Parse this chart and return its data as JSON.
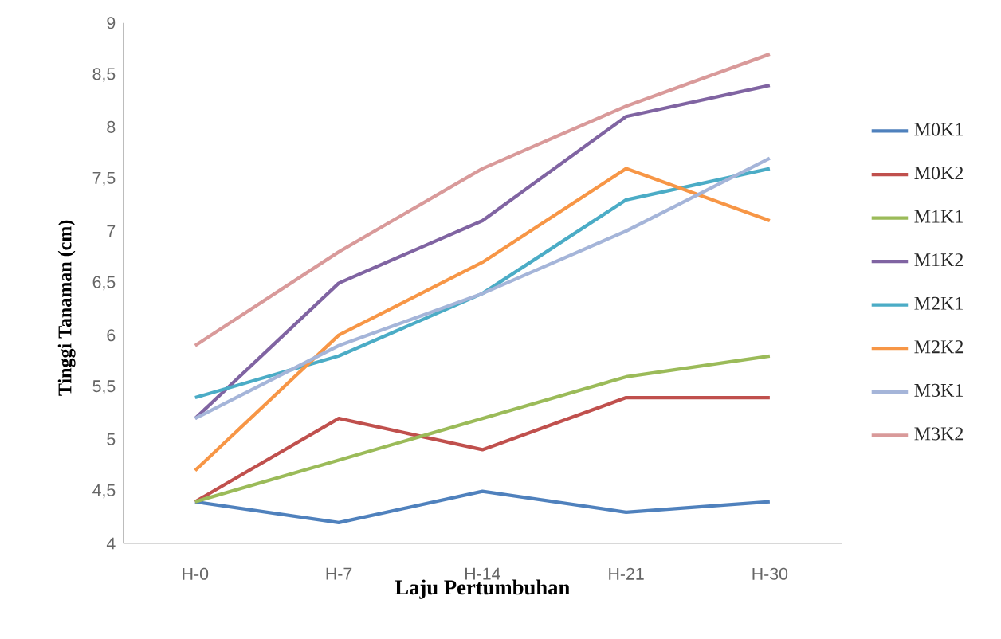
{
  "chart_data": {
    "type": "line",
    "xlabel": "Laju Pertumbuhan",
    "ylabel": "Tinggi Tanaman (cm)",
    "categories": [
      "H-0",
      "H-7",
      "H-14",
      "H-21",
      "H-30"
    ],
    "ylim": [
      4,
      9
    ],
    "yticks": [
      4,
      {
        "value": 4.5,
        "label": "4,5"
      },
      5,
      {
        "value": 5.5,
        "label": "5,5"
      },
      6,
      {
        "value": 6.5,
        "label": "6,5"
      },
      7,
      {
        "value": 7.5,
        "label": "7,5"
      },
      8,
      {
        "value": 8.5,
        "label": "8,5"
      },
      9
    ],
    "grid": false,
    "legend": "right",
    "marker": "none",
    "line_style": "solid",
    "series": [
      {
        "name": "M0K1",
        "color": "#4f81bd",
        "values": [
          4.4,
          4.2,
          4.5,
          4.3,
          4.4
        ]
      },
      {
        "name": "M0K2",
        "color": "#c0504d",
        "values": [
          4.4,
          5.2,
          4.9,
          5.4,
          5.4
        ]
      },
      {
        "name": "M1K1",
        "color": "#9bbb59",
        "values": [
          4.4,
          4.8,
          5.2,
          5.6,
          5.8
        ]
      },
      {
        "name": "M1K2",
        "color": "#8064a2",
        "values": [
          5.2,
          6.5,
          7.1,
          8.1,
          8.4
        ]
      },
      {
        "name": "M2K1",
        "color": "#4bacc6",
        "values": [
          5.4,
          5.8,
          6.4,
          7.3,
          7.6
        ]
      },
      {
        "name": "M2K2",
        "color": "#f79646",
        "values": [
          4.7,
          6.0,
          6.7,
          7.6,
          7.1
        ]
      },
      {
        "name": "M3K1",
        "color": "#a5b5d9",
        "values": [
          5.2,
          5.9,
          6.4,
          7.0,
          7.7
        ]
      },
      {
        "name": "M3K2",
        "color": "#d99a9a",
        "values": [
          5.9,
          6.8,
          7.6,
          8.2,
          8.7
        ]
      }
    ]
  }
}
